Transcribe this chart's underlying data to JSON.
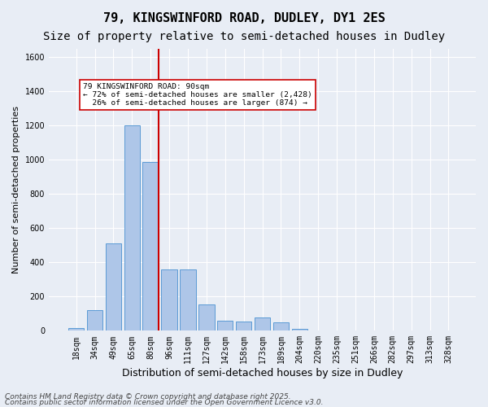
{
  "title1": "79, KINGSWINFORD ROAD, DUDLEY, DY1 2ES",
  "title2": "Size of property relative to semi-detached houses in Dudley",
  "xlabel": "Distribution of semi-detached houses by size in Dudley",
  "ylabel": "Number of semi-detached properties",
  "categories": [
    "18sqm",
    "34sqm",
    "49sqm",
    "65sqm",
    "80sqm",
    "96sqm",
    "111sqm",
    "127sqm",
    "142sqm",
    "158sqm",
    "173sqm",
    "189sqm",
    "204sqm",
    "220sqm",
    "235sqm",
    "251sqm",
    "266sqm",
    "282sqm",
    "297sqm",
    "313sqm",
    "328sqm"
  ],
  "values": [
    15,
    120,
    510,
    1200,
    990,
    360,
    360,
    155,
    60,
    55,
    80,
    50,
    10,
    0,
    0,
    0,
    0,
    0,
    0,
    0,
    0
  ],
  "bar_color": "#aec6e8",
  "bar_edge_color": "#5b9bd5",
  "vline_x": 4,
  "vline_color": "#cc0000",
  "annotation_text": "79 KINGSWINFORD ROAD: 90sqm\n← 72% of semi-detached houses are smaller (2,428)\n  26% of semi-detached houses are larger (874) →",
  "annotation_box_color": "#ffffff",
  "annotation_box_edge": "#cc0000",
  "ylim": [
    0,
    1650
  ],
  "yticks": [
    0,
    200,
    400,
    600,
    800,
    1000,
    1200,
    1400,
    1600
  ],
  "bg_color": "#e8edf5",
  "plot_bg_color": "#e8edf5",
  "footer1": "Contains HM Land Registry data © Crown copyright and database right 2025.",
  "footer2": "Contains public sector information licensed under the Open Government Licence v3.0.",
  "title1_fontsize": 11,
  "title2_fontsize": 10,
  "xlabel_fontsize": 9,
  "ylabel_fontsize": 8,
  "tick_fontsize": 7,
  "footer_fontsize": 6.5
}
